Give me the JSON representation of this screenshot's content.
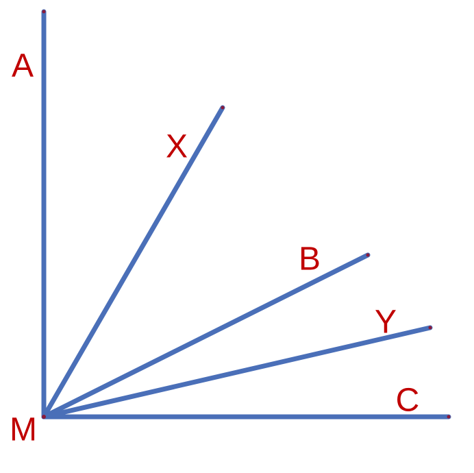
{
  "labels": {
    "vertex": "M",
    "rays": [
      "A",
      "X",
      "B",
      "Y",
      "C"
    ]
  }
}
